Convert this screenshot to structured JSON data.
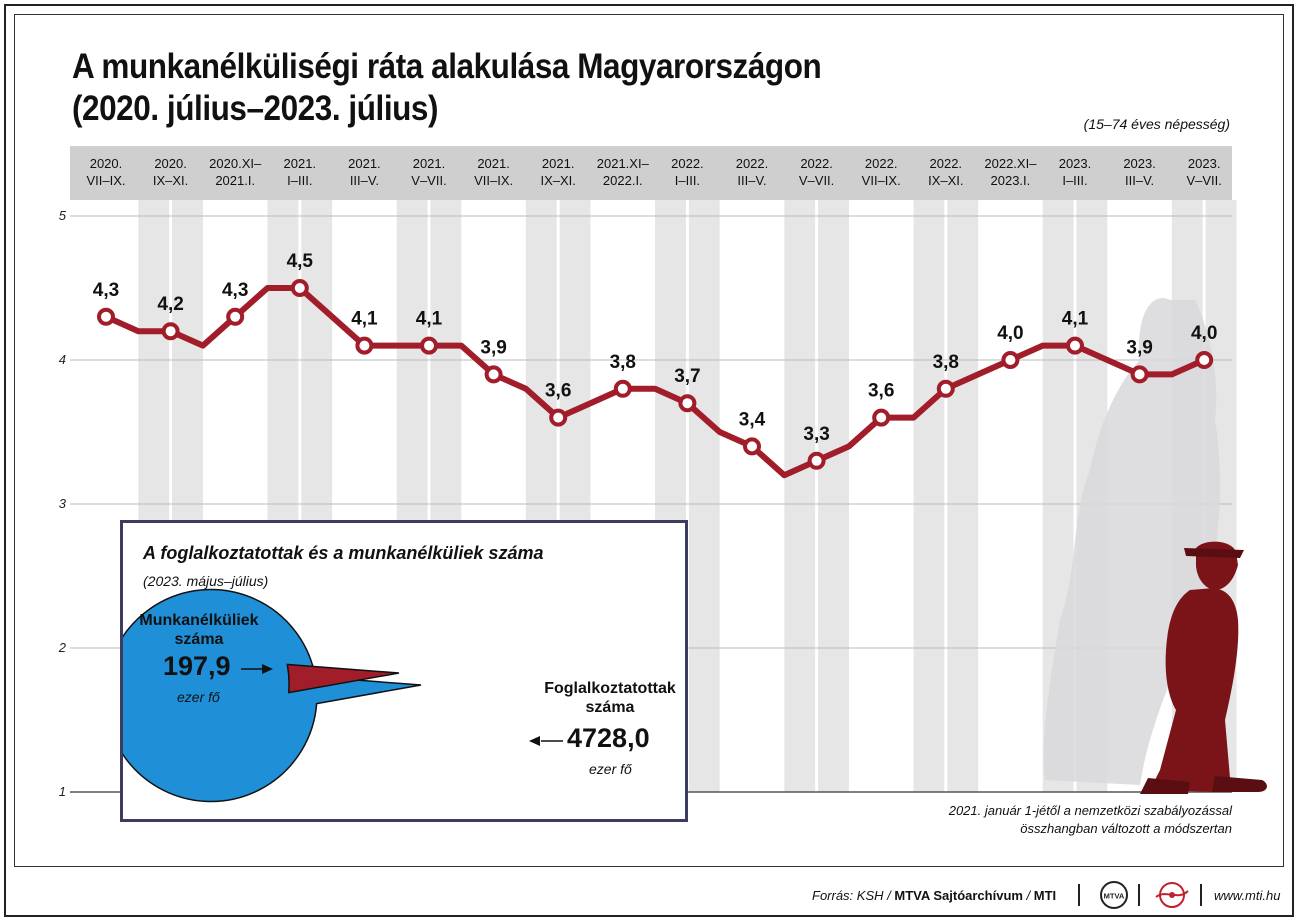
{
  "title_line1": "A munkanélküliségi ráta alakulása Magyarországon",
  "title_line2": "(2020. július–2023. július)",
  "subtitle": "(15–74 éves népesség)",
  "chart_data": [
    {
      "type": "line",
      "title": "A munkanélküliségi ráta alakulása Magyarországon (2020. július–2023. július)",
      "subtitle": "(15–74 éves népesség)",
      "ylim": [
        1,
        5
      ],
      "yticks": [
        1,
        2,
        3,
        4,
        5
      ],
      "grid": true,
      "categories": [
        [
          "2020.",
          "VII–IX."
        ],
        [
          "2020.",
          "IX–XI."
        ],
        [
          "2020.XI–",
          "2021.I."
        ],
        [
          "2021.",
          "I–III."
        ],
        [
          "2021.",
          "III–V."
        ],
        [
          "2021.",
          "V–VII."
        ],
        [
          "2021.",
          "VII–IX."
        ],
        [
          "2021.",
          "IX–XI."
        ],
        [
          "2021.XI–",
          "2022.I."
        ],
        [
          "2022.",
          "I–III."
        ],
        [
          "2022.",
          "III–V."
        ],
        [
          "2022.",
          "V–VII."
        ],
        [
          "2022.",
          "VII–IX."
        ],
        [
          "2022.",
          "IX–XI."
        ],
        [
          "2022.XI–",
          "2023.I."
        ],
        [
          "2023.",
          "I–III."
        ],
        [
          "2023.",
          "III–V."
        ],
        [
          "2023.",
          "V–VII."
        ]
      ],
      "x": [
        0,
        0.5,
        1,
        1.5,
        2,
        2.5,
        3,
        3.5,
        4,
        4.5,
        5,
        5.5,
        6,
        6.5,
        7,
        7.5,
        8,
        8.5,
        9,
        9.5,
        10,
        10.5,
        11,
        11.5,
        12,
        12.5,
        13,
        13.5,
        14,
        14.5,
        15,
        15.5,
        16,
        16.5,
        17
      ],
      "values": [
        4.3,
        4.2,
        4.2,
        4.1,
        4.3,
        4.5,
        4.5,
        4.3,
        4.1,
        4.1,
        4.1,
        4.1,
        3.9,
        3.8,
        3.6,
        3.7,
        3.8,
        3.8,
        3.7,
        3.5,
        3.4,
        3.2,
        3.3,
        3.4,
        3.6,
        3.6,
        3.8,
        3.9,
        4.0,
        4.1,
        4.1,
        4.0,
        3.9,
        3.9,
        4.0
      ],
      "labeled_points": [
        {
          "x": 0,
          "value": 4.3,
          "label": "4,3"
        },
        {
          "x": 1,
          "value": 4.2,
          "label": "4,2"
        },
        {
          "x": 2,
          "value": 4.3,
          "label": "4,3"
        },
        {
          "x": 3,
          "value": 4.5,
          "label": "4,5"
        },
        {
          "x": 4,
          "value": 4.1,
          "label": "4,1"
        },
        {
          "x": 5,
          "value": 4.1,
          "label": "4,1"
        },
        {
          "x": 6,
          "value": 3.9,
          "label": "3,9"
        },
        {
          "x": 7,
          "value": 3.6,
          "label": "3,6"
        },
        {
          "x": 8,
          "value": 3.8,
          "label": "3,8"
        },
        {
          "x": 9,
          "value": 3.7,
          "label": "3,7"
        },
        {
          "x": 10,
          "value": 3.4,
          "label": "3,4"
        },
        {
          "x": 11,
          "value": 3.3,
          "label": "3,3"
        },
        {
          "x": 12,
          "value": 3.6,
          "label": "3,6"
        },
        {
          "x": 13,
          "value": 3.8,
          "label": "3,8"
        },
        {
          "x": 14,
          "value": 4.0,
          "label": "4,0"
        },
        {
          "x": 15,
          "value": 4.1,
          "label": "4,1"
        },
        {
          "x": 16,
          "value": 3.9,
          "label": "3,9"
        },
        {
          "x": 17,
          "value": 4.0,
          "label": "4,0"
        }
      ],
      "line_color": "#a11d2a"
    },
    {
      "type": "pie",
      "title": "A foglalkoztatottak és a munkanélküliek száma",
      "subtitle": "(2023. május–július)",
      "slices": [
        {
          "name": "Munkanélküliek száma",
          "value": 197.9,
          "label": "197,9",
          "unit": "ezer fő",
          "color": "#a11d2a"
        },
        {
          "name": "Foglalkoztatottak száma",
          "value": 4728.0,
          "label": "4728,0",
          "unit": "ezer fő",
          "color": "#1f8fd8"
        }
      ]
    }
  ],
  "inset": {
    "title": "A foglalkoztatottak és a munkanélküliek száma",
    "subtitle": "(2023. május–július)",
    "unemp_label_1": "Munkanélküliek",
    "unemp_label_2": "száma",
    "unemp_value": "197,9",
    "unemp_unit": "ezer fő",
    "emp_label_1": "Foglalkoztatottak",
    "emp_label_2": "száma",
    "emp_value": "4728,0",
    "emp_unit": "ezer fő"
  },
  "note_line1": "2021. január 1-jétől a nemzetközi szabályozással",
  "note_line2": "összhangban változott a módszertan",
  "footer": {
    "source_prefix": "Forrás: KSH / ",
    "source_archive": "MTVA Sajtóarchívum",
    "source_sep": " / ",
    "source_agency": "MTI",
    "mtva_logo_text": "MTVA",
    "url": "www.mti.hu"
  },
  "colors": {
    "line": "#a11d2a",
    "pie_employed": "#1f8fd8",
    "pie_unemployed": "#a11d2a",
    "header_band": "#cfcfcf",
    "stripe": "#e6e6e6",
    "inset_border": "#3c3d5e"
  },
  "decoration": "silhouette-figure"
}
